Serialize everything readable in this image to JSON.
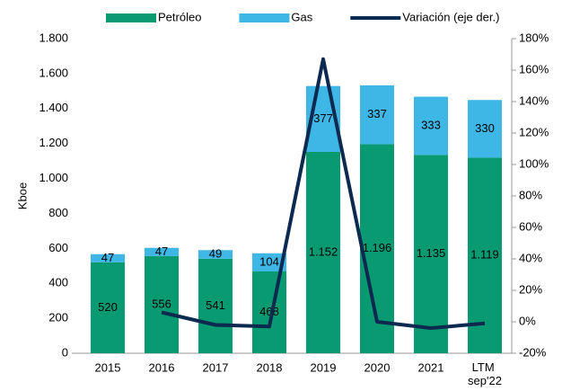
{
  "chart_data": {
    "type": "bar",
    "stacked": true,
    "categories": [
      "2015",
      "2016",
      "2017",
      "2018",
      "2019",
      "2020",
      "2021",
      "LTM sep'22"
    ],
    "y_label": "Kboe",
    "series": [
      {
        "name": "Petróleo",
        "color": "#0a9a72",
        "values": [
          520,
          556,
          541,
          468,
          1152,
          1196,
          1135,
          1119
        ],
        "value_labels": [
          "520",
          "556",
          "541",
          "468",
          "1.152",
          "1.196",
          "1.135",
          "1.119"
        ]
      },
      {
        "name": "Gas",
        "color": "#3eb6e6",
        "values": [
          47,
          47,
          49,
          104,
          377,
          337,
          333,
          330
        ]
      },
      {
        "name": "Variación (eje der.)",
        "type": "line",
        "axis": "y2",
        "color": "#0c2a4f",
        "values": [
          null,
          6,
          -2,
          -3,
          167,
          0,
          -4,
          -1
        ]
      }
    ],
    "ylim": [
      0,
      1800
    ],
    "yticks": [
      0,
      200,
      400,
      600,
      800,
      {
        "value": 1000,
        "label": "1.000"
      },
      {
        "value": 1200,
        "label": "1.200"
      },
      {
        "value": 1400,
        "label": "1.400"
      },
      {
        "value": 1600,
        "label": "1.600"
      },
      {
        "value": 1800,
        "label": "1.800"
      }
    ],
    "y2lim": [
      -20,
      180
    ],
    "y2ticks": [
      {
        "value": -20,
        "label": "-20%"
      },
      {
        "value": 0,
        "label": "0%"
      },
      {
        "value": 20,
        "label": "20%"
      },
      {
        "value": 40,
        "label": "40%"
      },
      {
        "value": 60,
        "label": "60%"
      },
      {
        "value": 80,
        "label": "80%"
      },
      {
        "value": 100,
        "label": "100%"
      },
      {
        "value": 120,
        "label": "120%"
      },
      {
        "value": 140,
        "label": "140%"
      },
      {
        "value": 160,
        "label": "160%"
      },
      {
        "value": 180,
        "label": "180%"
      }
    ],
    "legend": "top"
  }
}
